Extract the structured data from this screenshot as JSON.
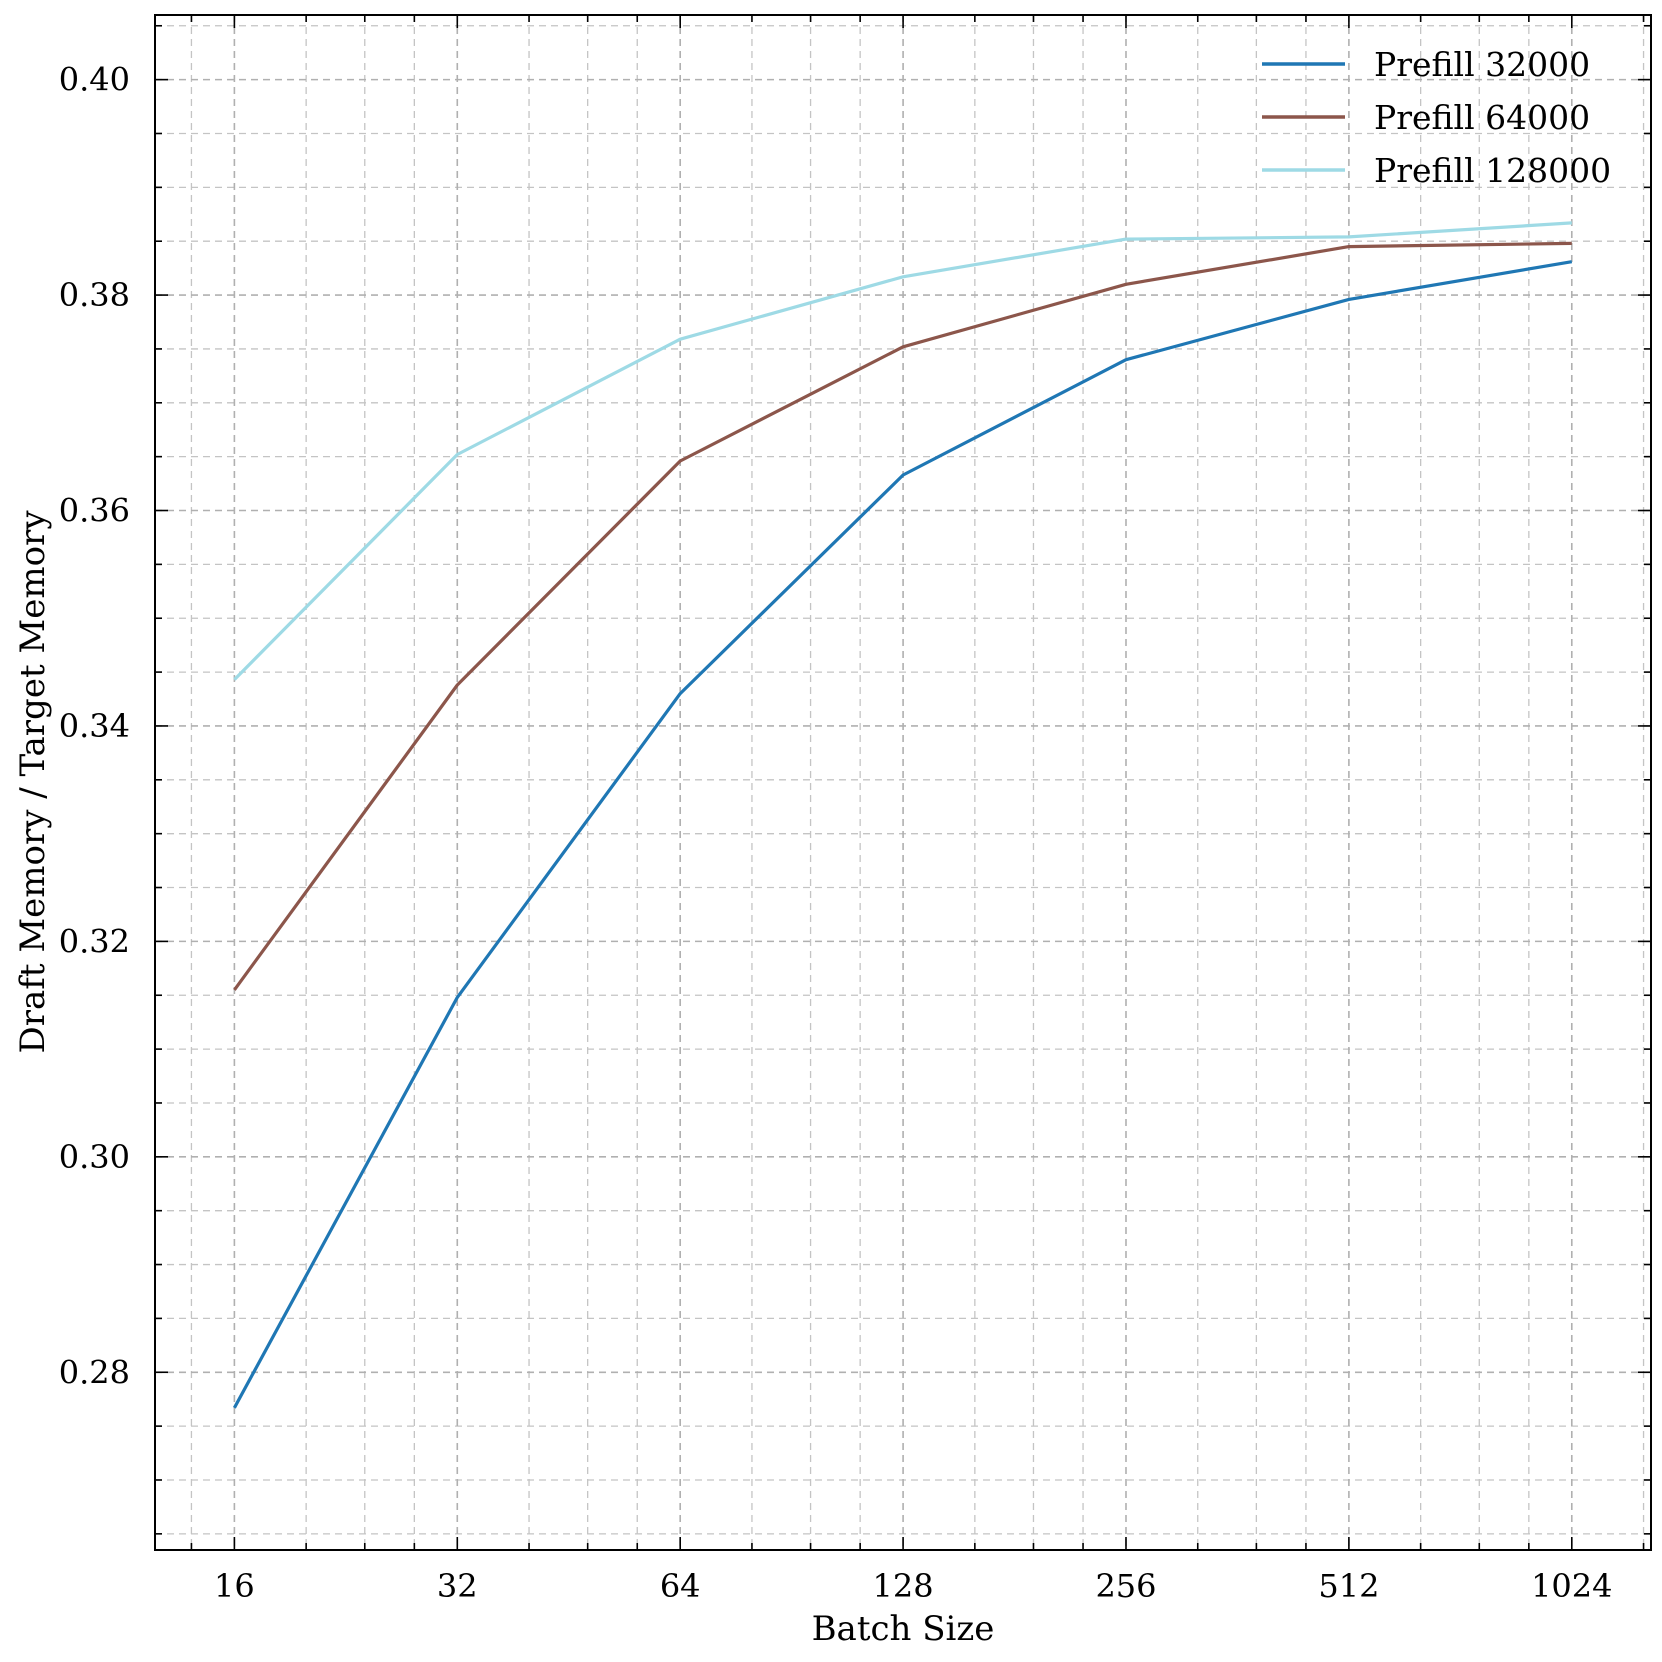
{
  "chart_data": {
    "type": "line",
    "x_scale": "log2",
    "x": [
      16,
      32,
      64,
      128,
      256,
      512,
      1024
    ],
    "x_tick_labels": [
      "16",
      "32",
      "64",
      "128",
      "256",
      "512",
      "1024"
    ],
    "xlim": [
      12.5,
      1310
    ],
    "ylim": [
      0.2635,
      0.406
    ],
    "y_ticks": [
      0.28,
      0.3,
      0.32,
      0.34,
      0.36,
      0.38,
      0.4
    ],
    "y_tick_labels": [
      "0.28",
      "0.30",
      "0.32",
      "0.34",
      "0.36",
      "0.38",
      "0.40"
    ],
    "xlabel": "Batch Size",
    "ylabel": "Draft Memory / Target Memory",
    "title": "",
    "grid": true,
    "legend_position": "top-right",
    "series": [
      {
        "name": "Prefill 32000",
        "color": "#1f77b4",
        "values": [
          0.2767,
          0.3148,
          0.343,
          0.3633,
          0.374,
          0.3796,
          0.3831
        ]
      },
      {
        "name": "Prefill 64000",
        "color": "#8c564b",
        "values": [
          0.3155,
          0.3438,
          0.3646,
          0.3752,
          0.381,
          0.3845,
          0.3848
        ]
      },
      {
        "name": "Prefill 128000",
        "color": "#9edae5",
        "values": [
          0.3443,
          0.3652,
          0.3759,
          0.3817,
          0.3852,
          0.3854,
          0.3867
        ]
      }
    ]
  }
}
